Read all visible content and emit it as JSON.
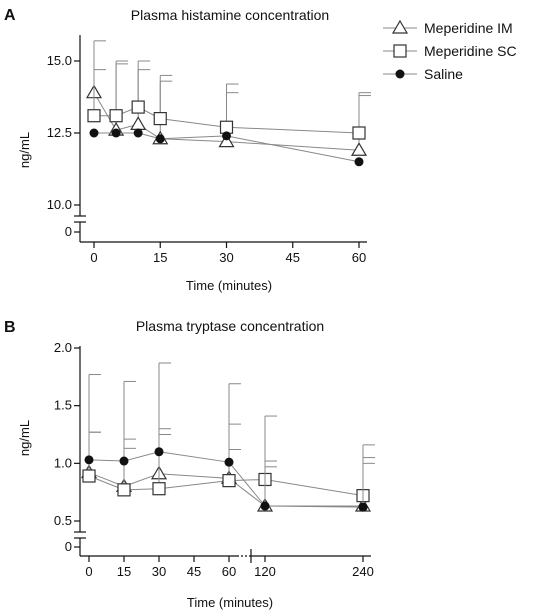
{
  "panels": [
    {
      "letter": "A"
    },
    {
      "letter": "B"
    }
  ],
  "legend": [
    {
      "name": "Meperidine IM",
      "marker": "triangle"
    },
    {
      "name": "Meperidine SC",
      "marker": "square"
    },
    {
      "name": "Saline",
      "marker": "circle"
    }
  ],
  "colors": {
    "markers": "#333333",
    "errorbars": "#888888",
    "axes": "#111111"
  },
  "chart_data": [
    {
      "type": "line",
      "title": "Plasma histamine concentration",
      "xlabel": "Time (minutes)",
      "ylabel": "ng/mL",
      "xlim": [
        -3,
        65
      ],
      "xticks": [
        "0",
        "15",
        "30",
        "45",
        "60"
      ],
      "yticks_upper": [
        "10.0",
        "12.5",
        "15.0"
      ],
      "ytick_lower": "0",
      "ylim_upper": [
        10.0,
        16.0
      ],
      "y_axis_break": [
        0,
        10.0
      ],
      "grid": false,
      "legend_position": "right",
      "series": [
        {
          "name": "Meperidine IM",
          "marker": "triangle",
          "x": [
            0,
            5,
            10,
            15,
            30,
            60
          ],
          "y": [
            13.9,
            12.6,
            12.8,
            12.3,
            12.2,
            11.9
          ],
          "err_upper": [
            14.7,
            14.9,
            14.7,
            14.5,
            13.9,
            13.8
          ]
        },
        {
          "name": "Meperidine SC",
          "marker": "square",
          "x": [
            0,
            5,
            10,
            15,
            30,
            60
          ],
          "y": [
            13.1,
            13.1,
            13.4,
            13.0,
            12.7,
            12.5
          ],
          "err_upper": [
            15.7,
            15.0,
            15.0,
            14.3,
            14.2,
            13.9
          ]
        },
        {
          "name": "Saline",
          "marker": "circle",
          "x": [
            0,
            5,
            10,
            15,
            30,
            60
          ],
          "y": [
            12.5,
            12.5,
            12.5,
            12.3,
            12.4,
            11.5
          ],
          "err_upper": [
            null,
            null,
            null,
            null,
            null,
            null
          ]
        }
      ]
    },
    {
      "type": "line",
      "title": "Plasma tryptase concentration",
      "xlabel": "Time (minutes)",
      "ylabel": "ng/mL",
      "xticks": [
        "0",
        "15",
        "30",
        "45",
        "60",
        "120",
        "240"
      ],
      "x_axis_break": [
        70,
        110
      ],
      "yticks_upper": [
        "0.5",
        "1.0",
        "1.5",
        "2.0"
      ],
      "ytick_lower": "0",
      "ylim_upper": [
        0.5,
        2.0
      ],
      "y_axis_break": [
        0,
        0.5
      ],
      "grid": false,
      "legend_position": "right",
      "series": [
        {
          "name": "Meperidine IM",
          "marker": "triangle",
          "x": [
            0,
            15,
            30,
            60,
            120,
            240
          ],
          "y": [
            0.92,
            0.8,
            0.91,
            0.87,
            0.63,
            0.63
          ],
          "err_upper": [
            1.27,
            1.13,
            1.25,
            1.12,
            0.97,
            1.0
          ]
        },
        {
          "name": "Meperidine SC",
          "marker": "square",
          "x": [
            0,
            15,
            30,
            60,
            120,
            240
          ],
          "y": [
            0.89,
            0.77,
            0.78,
            0.85,
            0.86,
            0.72
          ],
          "err_upper": [
            1.27,
            1.21,
            1.3,
            1.34,
            1.41,
            1.16
          ]
        },
        {
          "name": "Saline",
          "marker": "circle",
          "x": [
            0,
            15,
            30,
            60,
            120,
            240
          ],
          "y": [
            1.03,
            1.02,
            1.1,
            1.01,
            0.63,
            0.62
          ],
          "err_upper": [
            1.77,
            1.71,
            1.87,
            1.69,
            1.02,
            1.05
          ]
        }
      ]
    }
  ]
}
